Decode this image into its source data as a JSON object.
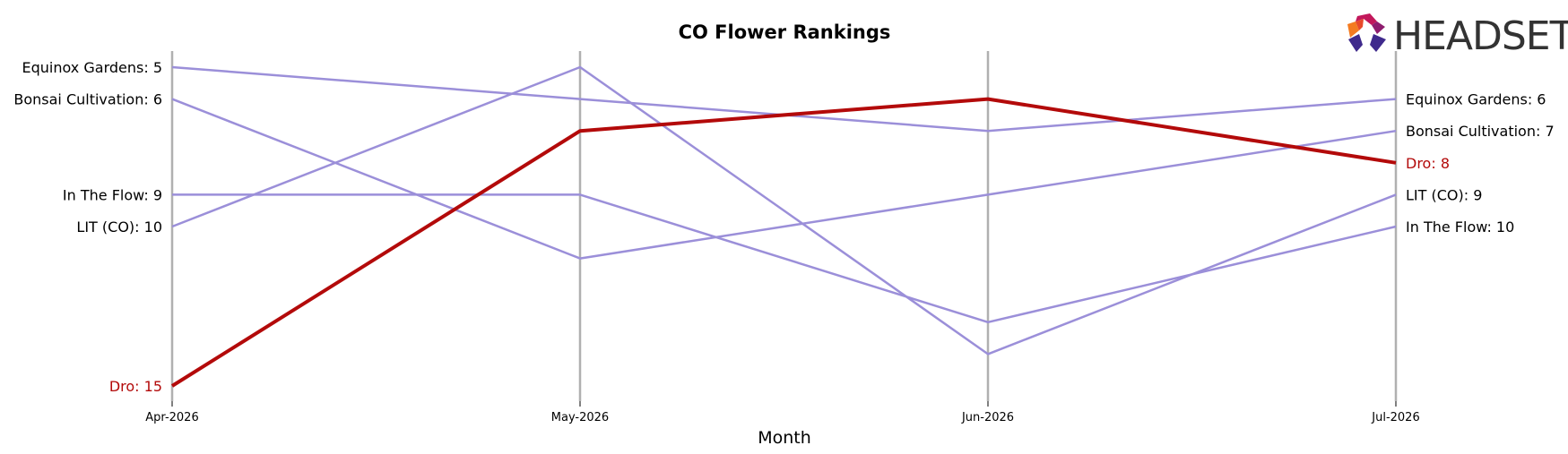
{
  "chart_data": {
    "type": "line",
    "title": "CO Flower Rankings",
    "xlabel": "Month",
    "ylabel": "",
    "x": [
      "Apr-2026",
      "May-2026",
      "Jun-2026",
      "Jul-2026"
    ],
    "y_inverted": true,
    "grid": "vertical lines at each month",
    "series": [
      {
        "name": "Equinox Gardens",
        "values": [
          5,
          6,
          7,
          6
        ],
        "color": "#9b8fd9",
        "highlight": false,
        "start_label": "Equinox Gardens: 5",
        "end_label": "Equinox Gardens: 6"
      },
      {
        "name": "Bonsai Cultivation",
        "values": [
          6,
          11,
          9,
          7
        ],
        "color": "#9b8fd9",
        "highlight": false,
        "start_label": "Bonsai Cultivation: 6",
        "end_label": "Bonsai Cultivation: 7"
      },
      {
        "name": "In The Flow",
        "values": [
          9,
          9,
          13,
          10
        ],
        "color": "#9b8fd9",
        "highlight": false,
        "start_label": "In The Flow: 9",
        "end_label": "In The Flow: 10"
      },
      {
        "name": "LIT (CO)",
        "values": [
          10,
          5,
          14,
          9
        ],
        "color": "#9b8fd9",
        "highlight": false,
        "start_label": "LIT (CO): 10",
        "end_label": "LIT (CO): 9"
      },
      {
        "name": "Dro",
        "values": [
          15,
          7,
          6,
          8
        ],
        "color": "#b30a0a",
        "highlight": true,
        "start_label": "Dro: 15",
        "end_label": "Dro: 8"
      }
    ]
  },
  "logo": {
    "text": "HEADSET",
    "text_color": "#333333",
    "mark_colors": [
      "#e8492b",
      "#f47b20",
      "#c2185b",
      "#8e1d6e",
      "#3f2a8c"
    ]
  },
  "colors": {
    "axis_line": "#b0b0b0",
    "highlight": "#b30a0a",
    "other": "#9b8fd9",
    "text": "#000000"
  }
}
